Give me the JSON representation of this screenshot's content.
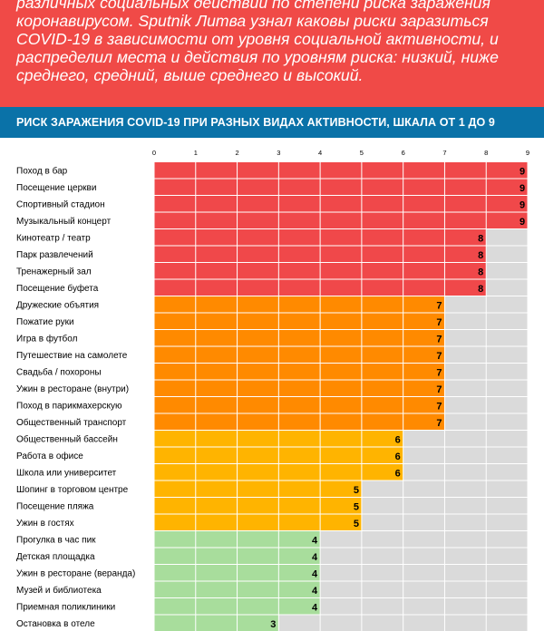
{
  "intro": {
    "text": "различных социальных действий по степени риска заражения коронавирусом. Sputnik Литва узнал каковы риски заразиться COVID-19 в зависимости от уровня социальной активности, и распределил места и действия по уровням риска: низкий, ниже среднего, средний, выше среднего и высокий."
  },
  "colors": {
    "intro_bg": "#f04a47",
    "banner_bg": "#0a72a8",
    "high": "#f0484a",
    "above_average": "#ff8a00",
    "average": "#ffb400",
    "low": "#a8dd9c",
    "empty": "#dadada"
  },
  "chart_data": {
    "type": "bar",
    "orientation": "horizontal",
    "title": "РИСК ЗАРАЖЕНИЯ COVID-19 ПРИ РАЗНЫХ ВИДАХ АКТИВНОСТИ, ШКАЛА ОТ 1 ДО 9",
    "xlim": [
      0,
      9
    ],
    "xticks": [
      0,
      1,
      2,
      3,
      4,
      5,
      6,
      7,
      8,
      9
    ],
    "grid": true,
    "categories": [
      "Поход в бар",
      "Посещение церкви",
      "Спортивный стадион",
      "Музыкальный концерт",
      "Кинотеатр / театр",
      "Парк развлечений",
      "Тренажерный зал",
      "Посещение буфета",
      "Дружеские объятия",
      "Пожатие руки",
      "Игра в футбол",
      "Путешествие на самолете",
      "Свадьба / похороны",
      "Ужин в ресторане (внутри)",
      "Поход в парикмахерскую",
      "Общественный транспорт",
      "Общественный бассейн",
      "Работа в офисе",
      "Школа или университет",
      "Шопинг в торговом центре",
      "Посещение пляжа",
      "Ужин в гостях",
      "Прогулка в час пик",
      "Детская площадка",
      "Ужин в ресторане (веранда)",
      "Музей и библиотека",
      "Приемная поликлиники",
      "Остановка в отеле"
    ],
    "values": [
      9,
      9,
      9,
      9,
      8,
      8,
      8,
      8,
      7,
      7,
      7,
      7,
      7,
      7,
      7,
      7,
      6,
      6,
      6,
      5,
      5,
      5,
      4,
      4,
      4,
      4,
      4,
      3
    ]
  }
}
